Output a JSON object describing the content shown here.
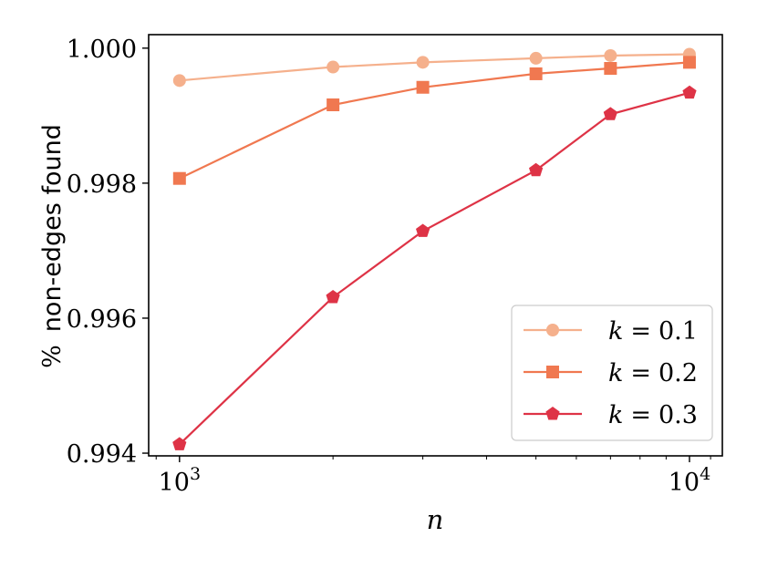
{
  "chart_data": {
    "type": "line",
    "xlabel": "n",
    "ylabel_prefix": "%",
    "ylabel_text": "non-edges found",
    "x_scale": "log",
    "xlim": [
      870,
      11600
    ],
    "ylim": [
      0.99396,
      1.0002
    ],
    "x_ticks": [
      {
        "value": 1000,
        "base": "10",
        "exp": "3"
      },
      {
        "value": 10000,
        "base": "10",
        "exp": "4"
      }
    ],
    "y_ticks": [
      {
        "value": 0.994,
        "label": "0.994"
      },
      {
        "value": 0.996,
        "label": "0.996"
      },
      {
        "value": 0.998,
        "label": "0.998"
      },
      {
        "value": 1.0,
        "label": "1.000"
      }
    ],
    "grid": false,
    "legend_position": "lower-right",
    "series": [
      {
        "name": "k = 0.1",
        "var": "k",
        "op": "=",
        "num": "0.1",
        "color": "#f5b08c",
        "marker": "circle",
        "x": [
          1000,
          2000,
          3000,
          5000,
          7000,
          10000
        ],
        "y": [
          0.99952,
          0.99972,
          0.99979,
          0.99985,
          0.99989,
          0.99991
        ]
      },
      {
        "name": "k = 0.2",
        "var": "k",
        "op": "=",
        "num": "0.2",
        "color": "#f07850",
        "marker": "square",
        "x": [
          1000,
          2000,
          3000,
          5000,
          7000,
          10000
        ],
        "y": [
          0.99807,
          0.99916,
          0.99942,
          0.99962,
          0.9997,
          0.99979
        ]
      },
      {
        "name": "k = 0.3",
        "var": "k",
        "op": "=",
        "num": "0.3",
        "color": "#de3346",
        "marker": "pentagon",
        "x": [
          1000,
          2000,
          3000,
          5000,
          7000,
          10000
        ],
        "y": [
          0.99413,
          0.99631,
          0.99729,
          0.99819,
          0.99902,
          0.99934
        ]
      }
    ]
  }
}
